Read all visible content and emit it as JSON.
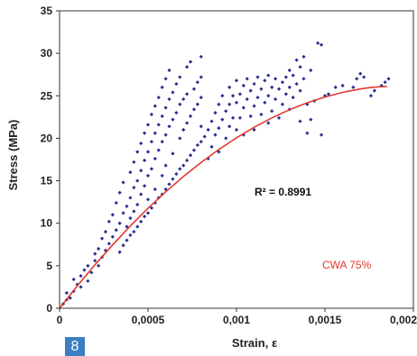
{
  "chart_data": {
    "type": "scatter",
    "xlabel": "Strain,  ε",
    "ylabel": "Stress  (MPa)",
    "xlim": [
      0,
      0.002
    ],
    "ylim": [
      0,
      35
    ],
    "x_ticks": [
      "0",
      "0,0005",
      "0,001",
      "0,0015",
      "0,002"
    ],
    "y_ticks": [
      "0",
      "5",
      "10",
      "15",
      "20",
      "25",
      "30",
      "35"
    ],
    "grid": false,
    "annotations": [
      "R² = 0.8991",
      "CWA 75%"
    ],
    "series": [
      {
        "type": "scatter",
        "color": "#2b2f8f",
        "points": [
          [
            2e-05,
            0.5
          ],
          [
            4e-05,
            1.0
          ],
          [
            4e-05,
            1.8
          ],
          [
            6e-05,
            1.2
          ],
          [
            8e-05,
            2.0
          ],
          [
            0.0001,
            2.8
          ],
          [
            8e-05,
            3.4
          ],
          [
            0.00012,
            3.8
          ],
          [
            0.00012,
            2.5
          ],
          [
            0.00014,
            4.5
          ],
          [
            0.00016,
            3.2
          ],
          [
            0.00016,
            5.0
          ],
          [
            0.00018,
            4.2
          ],
          [
            0.0002,
            5.6
          ],
          [
            0.0002,
            6.4
          ],
          [
            0.00022,
            5.0
          ],
          [
            0.00022,
            7.0
          ],
          [
            0.00024,
            6.0
          ],
          [
            0.00024,
            8.2
          ],
          [
            0.00026,
            6.8
          ],
          [
            0.00026,
            9.0
          ],
          [
            0.00028,
            7.6
          ],
          [
            0.00028,
            10.2
          ],
          [
            0.0003,
            8.4
          ],
          [
            0.0003,
            11.0
          ],
          [
            0.00032,
            9.2
          ],
          [
            0.00032,
            12.4
          ],
          [
            0.00034,
            10.0
          ],
          [
            0.00034,
            13.6
          ],
          [
            0.00036,
            11.2
          ],
          [
            0.00036,
            14.8
          ],
          [
            0.00038,
            12.0
          ],
          [
            0.00038,
            9.6
          ],
          [
            0.0004,
            16.0
          ],
          [
            0.0004,
            13.0
          ],
          [
            0.0004,
            10.6
          ],
          [
            0.00042,
            17.2
          ],
          [
            0.00042,
            14.2
          ],
          [
            0.00042,
            11.4
          ],
          [
            0.00044,
            18.4
          ],
          [
            0.00044,
            15.0
          ],
          [
            0.00044,
            12.2
          ],
          [
            0.00046,
            19.4
          ],
          [
            0.00046,
            16.2
          ],
          [
            0.00046,
            13.4
          ],
          [
            0.00048,
            20.6
          ],
          [
            0.00048,
            17.4
          ],
          [
            0.00048,
            14.4
          ],
          [
            0.0005,
            21.6
          ],
          [
            0.0005,
            18.4
          ],
          [
            0.0005,
            15.6
          ],
          [
            0.0005,
            12.8
          ],
          [
            0.00052,
            22.8
          ],
          [
            0.00052,
            19.6
          ],
          [
            0.00052,
            16.4
          ],
          [
            0.00054,
            23.8
          ],
          [
            0.00054,
            20.6
          ],
          [
            0.00054,
            17.6
          ],
          [
            0.00054,
            14.0
          ],
          [
            0.00056,
            24.8
          ],
          [
            0.00056,
            21.6
          ],
          [
            0.00056,
            18.6
          ],
          [
            0.00058,
            26.0
          ],
          [
            0.00058,
            22.6
          ],
          [
            0.00058,
            19.6
          ],
          [
            0.00058,
            15.6
          ],
          [
            0.0006,
            27.0
          ],
          [
            0.0006,
            23.6
          ],
          [
            0.0006,
            20.4
          ],
          [
            0.0006,
            16.8
          ],
          [
            0.00062,
            28.0
          ],
          [
            0.00062,
            24.6
          ],
          [
            0.00062,
            21.4
          ],
          [
            0.00064,
            25.4
          ],
          [
            0.00064,
            22.2
          ],
          [
            0.00064,
            18.2
          ],
          [
            0.00066,
            26.4
          ],
          [
            0.00066,
            23.0
          ],
          [
            0.00068,
            27.2
          ],
          [
            0.00068,
            24.0
          ],
          [
            0.00068,
            20.0
          ],
          [
            0.0007,
            24.6
          ],
          [
            0.0007,
            21.0
          ],
          [
            0.00072,
            28.4
          ],
          [
            0.00072,
            25.2
          ],
          [
            0.00072,
            21.8
          ],
          [
            0.00074,
            29.0
          ],
          [
            0.00074,
            22.6
          ],
          [
            0.00076,
            25.8
          ],
          [
            0.00076,
            23.4
          ],
          [
            0.00078,
            26.6
          ],
          [
            0.00078,
            24.0
          ],
          [
            0.0008,
            29.6
          ],
          [
            0.0008,
            27.2
          ],
          [
            0.0008,
            24.8
          ],
          [
            0.0008,
            21.4
          ],
          [
            0.00034,
            6.6
          ],
          [
            0.00036,
            7.4
          ],
          [
            0.00038,
            8.0
          ],
          [
            0.0004,
            8.6
          ],
          [
            0.00042,
            9.0
          ],
          [
            0.00044,
            9.6
          ],
          [
            0.00046,
            10.2
          ],
          [
            0.00048,
            10.8
          ],
          [
            0.0005,
            11.2
          ],
          [
            0.00052,
            11.8
          ],
          [
            0.00054,
            12.4
          ],
          [
            0.00056,
            13.0
          ],
          [
            0.00058,
            13.4
          ],
          [
            0.0006,
            14.0
          ],
          [
            0.00062,
            14.6
          ],
          [
            0.00064,
            15.2
          ],
          [
            0.00066,
            15.8
          ],
          [
            0.00068,
            16.4
          ],
          [
            0.0007,
            16.8
          ],
          [
            0.00072,
            17.4
          ],
          [
            0.00074,
            18.0
          ],
          [
            0.00076,
            18.6
          ],
          [
            0.00078,
            19.2
          ],
          [
            0.0008,
            19.6
          ],
          [
            0.00082,
            20.2
          ],
          [
            0.00084,
            21.0
          ],
          [
            0.00084,
            17.6
          ],
          [
            0.00086,
            22.0
          ],
          [
            0.00086,
            19.0
          ],
          [
            0.00088,
            23.0
          ],
          [
            0.00088,
            20.4
          ],
          [
            0.0009,
            24.0
          ],
          [
            0.0009,
            21.2
          ],
          [
            0.0009,
            18.4
          ],
          [
            0.00092,
            25.0
          ],
          [
            0.00092,
            22.2
          ],
          [
            0.00094,
            23.2
          ],
          [
            0.00094,
            20.0
          ],
          [
            0.00096,
            26.0
          ],
          [
            0.00096,
            24.0
          ],
          [
            0.00096,
            21.4
          ],
          [
            0.00098,
            25.0
          ],
          [
            0.00098,
            22.4
          ],
          [
            0.001,
            26.8
          ],
          [
            0.001,
            24.2
          ],
          [
            0.001,
            21.0
          ],
          [
            0.00102,
            25.2
          ],
          [
            0.00102,
            22.4
          ],
          [
            0.00104,
            26.2
          ],
          [
            0.00104,
            23.6
          ],
          [
            0.00104,
            20.4
          ],
          [
            0.00106,
            27.0
          ],
          [
            0.00106,
            24.6
          ],
          [
            0.00108,
            25.6
          ],
          [
            0.00108,
            22.6
          ],
          [
            0.0011,
            26.4
          ],
          [
            0.0011,
            23.8
          ],
          [
            0.0011,
            21.0
          ],
          [
            0.00112,
            27.2
          ],
          [
            0.00112,
            24.8
          ],
          [
            0.00114,
            25.8
          ],
          [
            0.00114,
            22.8
          ],
          [
            0.00116,
            26.8
          ],
          [
            0.00116,
            24.2
          ],
          [
            0.00118,
            27.4
          ],
          [
            0.00118,
            25.0
          ],
          [
            0.00118,
            21.8
          ],
          [
            0.0012,
            26.0
          ],
          [
            0.0012,
            23.2
          ],
          [
            0.00122,
            27.0
          ],
          [
            0.00122,
            24.6
          ],
          [
            0.00124,
            25.8
          ],
          [
            0.00124,
            22.4
          ],
          [
            0.00126,
            26.6
          ],
          [
            0.00126,
            24.0
          ],
          [
            0.00128,
            27.2
          ],
          [
            0.00128,
            25.2
          ],
          [
            0.0013,
            28.0
          ],
          [
            0.0013,
            26.0
          ],
          [
            0.0013,
            23.4
          ],
          [
            0.00132,
            27.4
          ],
          [
            0.00132,
            24.8
          ],
          [
            0.00134,
            29.2
          ],
          [
            0.00134,
            26.4
          ],
          [
            0.00136,
            28.4
          ],
          [
            0.00136,
            25.6
          ],
          [
            0.00136,
            22.0
          ],
          [
            0.00138,
            29.6
          ],
          [
            0.00138,
            27.0
          ],
          [
            0.0014,
            24.0
          ],
          [
            0.0014,
            20.6
          ],
          [
            0.00142,
            28.0
          ],
          [
            0.00142,
            22.2
          ],
          [
            0.00144,
            24.4
          ],
          [
            0.00146,
            31.2
          ],
          [
            0.00148,
            31.0
          ],
          [
            0.00148,
            20.4
          ],
          [
            0.0015,
            25.0
          ],
          [
            0.00152,
            25.2
          ],
          [
            0.00156,
            26.0
          ],
          [
            0.0016,
            26.2
          ],
          [
            0.00166,
            26.0
          ],
          [
            0.00168,
            27.0
          ],
          [
            0.0017,
            27.6
          ],
          [
            0.00172,
            27.2
          ],
          [
            0.00176,
            25.0
          ],
          [
            0.00178,
            25.6
          ],
          [
            0.00182,
            26.2
          ],
          [
            0.00184,
            26.6
          ],
          [
            0.00186,
            27.0
          ]
        ]
      },
      {
        "type": "line",
        "color": "#e03a30",
        "points": [
          [
            0,
            0
          ],
          [
            0.0001,
            2.62
          ],
          [
            0.0002,
            5.11
          ],
          [
            0.0003,
            7.46
          ],
          [
            0.0004,
            9.68
          ],
          [
            0.0005,
            11.76
          ],
          [
            0.0006,
            13.7
          ],
          [
            0.0007,
            15.5
          ],
          [
            0.0008,
            17.16
          ],
          [
            0.0009,
            18.68
          ],
          [
            0.001,
            20.06
          ],
          [
            0.0011,
            21.3
          ],
          [
            0.0012,
            22.4
          ],
          [
            0.0013,
            23.36
          ],
          [
            0.0014,
            24.18
          ],
          [
            0.0015,
            24.86
          ],
          [
            0.0016,
            25.4
          ],
          [
            0.0017,
            25.8
          ],
          [
            0.00175,
            25.95
          ],
          [
            0.0018,
            26.06
          ],
          [
            0.00185,
            26.1
          ]
        ]
      }
    ]
  }
}
